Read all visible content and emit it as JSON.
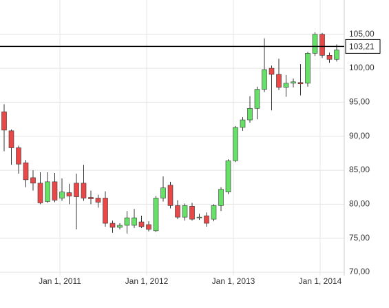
{
  "chart_data": {
    "type": "candlestick",
    "categories": [
      null,
      null,
      null,
      null,
      null,
      null,
      null,
      null,
      "Jan 1, 2011",
      null,
      null,
      null,
      null,
      null,
      null,
      null,
      null,
      null,
      null,
      null,
      "Jan 1, 2012",
      null,
      null,
      null,
      null,
      null,
      null,
      null,
      null,
      null,
      null,
      null,
      "Jan 1, 2013",
      null,
      null,
      null,
      null,
      null,
      null,
      null,
      null,
      null,
      null,
      null,
      "Jan 1, 2014",
      null,
      null
    ],
    "open": [
      93.6,
      90.8,
      88.3,
      86.1,
      83.9,
      83.1,
      80.4,
      83.3,
      80.9,
      81.7,
      83.1,
      83.1,
      81,
      80.9,
      80.9,
      77.2,
      76.6,
      76.9,
      76.9,
      77.4,
      77,
      76.1,
      80.9,
      82.8,
      79.8,
      78.1,
      79.7,
      78,
      78.3,
      77.8,
      79.8,
      81.8,
      86.4,
      91.3,
      92.4,
      94.1,
      96.9,
      100,
      99.1,
      97.2,
      97.8,
      97.9,
      97.8,
      102.2,
      105,
      101.9,
      101.3
    ],
    "high": [
      94.7,
      91,
      88.6,
      86.5,
      85,
      84.7,
      84.7,
      84.6,
      83.8,
      83,
      84.5,
      85.8,
      82,
      81.4,
      81.9,
      77.6,
      77.2,
      79,
      79.3,
      78.3,
      77.5,
      81.2,
      84.1,
      83.3,
      80.6,
      80.1,
      80.2,
      78.6,
      78.8,
      80,
      82.5,
      86.6,
      91.5,
      92.8,
      95.9,
      97.3,
      104.4,
      100.4,
      101.4,
      99,
      98.5,
      100.6,
      102.4,
      105.3,
      105.2,
      102.3,
      103.5
    ],
    "low": [
      87.8,
      85.8,
      84.5,
      82.5,
      82,
      80,
      80.2,
      80.3,
      80.5,
      80,
      76.3,
      80.5,
      80,
      79.5,
      76.7,
      75.8,
      76.3,
      75.7,
      76.5,
      76.5,
      76,
      75.9,
      80.4,
      79.4,
      77.8,
      77.6,
      77.6,
      77.7,
      76.7,
      77.5,
      79,
      81.5,
      86.2,
      90.8,
      92,
      92.5,
      96.5,
      93.8,
      96.8,
      95.8,
      97.2,
      96,
      97.3,
      101.8,
      101.5,
      100.8,
      101
    ],
    "close": [
      90.9,
      88.3,
      85.9,
      83.6,
      83.1,
      80.2,
      83.3,
      80.6,
      81.8,
      81.2,
      81.1,
      80.9,
      80.8,
      80.3,
      77.2,
      76.6,
      76.9,
      78,
      78,
      76.7,
      76.3,
      80.9,
      82.4,
      79.8,
      78.1,
      79.8,
      77.8,
      78.1,
      77.2,
      79.8,
      82.2,
      86.4,
      91.3,
      92.4,
      94.1,
      96.9,
      99.8,
      99.1,
      97.2,
      97.8,
      98,
      97.7,
      102.2,
      105,
      101.9,
      101.3,
      102.7
    ],
    "up_color": "#66e066",
    "down_color": "#e84848",
    "ylim": [
      69.5,
      107
    ],
    "yticks": [
      {
        "value": 70,
        "label": "70,00"
      },
      {
        "value": 75,
        "label": "75,00"
      },
      {
        "value": 80,
        "label": "80,00"
      },
      {
        "value": 85,
        "label": "85,00"
      },
      {
        "value": 90,
        "label": "90,00"
      },
      {
        "value": 95,
        "label": "95,00"
      },
      {
        "value": 100,
        "label": "100,00"
      },
      {
        "value": 105,
        "label": "105,00"
      }
    ],
    "reference_line": {
      "value": 103.21,
      "label": "103,21"
    },
    "grid": true
  }
}
